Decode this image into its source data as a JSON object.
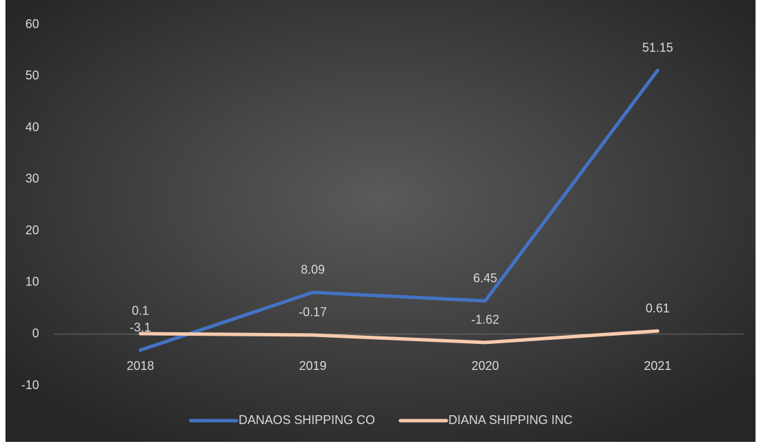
{
  "chart_data": {
    "type": "line",
    "categories": [
      "2018",
      "2019",
      "2020",
      "2021"
    ],
    "series": [
      {
        "name": "DANAOS SHIPPING CO",
        "color": "#4472c4",
        "values": [
          -3.1,
          8.09,
          6.45,
          51.15
        ]
      },
      {
        "name": "DIANA SHIPPING INC",
        "color": "#f8cbad",
        "values": [
          0.1,
          -0.17,
          -1.62,
          0.61
        ]
      }
    ],
    "ylim": [
      -10,
      60
    ],
    "yticks": [
      -10,
      0,
      10,
      20,
      30,
      40,
      50,
      60
    ],
    "grid": false,
    "legend": "bottom"
  }
}
